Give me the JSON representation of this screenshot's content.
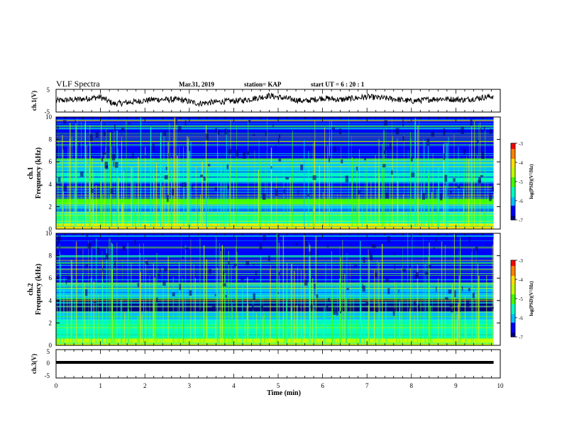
{
  "header": {
    "title": "VLF Spectra",
    "date": "Mar.31, 2019",
    "station": "station= KAP",
    "start": "start  UT  =   6  : 20 : 1"
  },
  "chart_data": [
    {
      "type": "line",
      "name": "ch.1 waveform",
      "ylabel": "ch.1(V)",
      "ylim": [
        -5,
        5
      ],
      "yticks": [
        "5",
        "-5"
      ],
      "xlim": [
        0,
        10
      ],
      "description_values": {
        "mean": 0.5,
        "amplitude": 2.0,
        "trend": [
          [
            0,
            0
          ],
          [
            0.5,
            0.6
          ],
          [
            1.0,
            1.6
          ],
          [
            1.3,
            -1.4
          ],
          [
            1.8,
            -0.4
          ],
          [
            2.2,
            0.6
          ],
          [
            2.8,
            0.4
          ],
          [
            3.2,
            -1.2
          ],
          [
            3.8,
            -0.3
          ],
          [
            4.2,
            0.1
          ],
          [
            4.8,
            2.2
          ],
          [
            5.2,
            0.9
          ],
          [
            5.6,
            -0.2
          ],
          [
            6.0,
            1.2
          ],
          [
            6.4,
            0.4
          ],
          [
            7.0,
            1.7
          ],
          [
            7.6,
            0.8
          ],
          [
            8.0,
            -0.2
          ],
          [
            8.6,
            0.9
          ],
          [
            9.2,
            0.4
          ],
          [
            9.8,
            1.9
          ]
        ]
      }
    },
    {
      "type": "heatmap",
      "name": "ch.1 spectrogram",
      "ylabel_top": "ch.1",
      "ylabel": "Frequency (kHz)",
      "ylim": [
        0,
        10
      ],
      "yticks": [
        "0",
        "2",
        "4",
        "6",
        "8",
        "10"
      ],
      "xlim": [
        0,
        9.85
      ],
      "colorbar": {
        "label": "log(PSD)(V²/Hz)",
        "range": [
          -7,
          -3
        ],
        "ticks": [
          "-3",
          "-4",
          "-5",
          "-6",
          "-7"
        ]
      },
      "bands": [
        {
          "f": [
            0.0,
            0.5
          ],
          "level": -4.2
        },
        {
          "f": [
            0.5,
            1.4
          ],
          "level": -5.4
        },
        {
          "f": [
            1.4,
            2.2
          ],
          "level": -6.0
        },
        {
          "f": [
            2.2,
            2.7
          ],
          "level": -5.0
        },
        {
          "f": [
            2.7,
            3.6
          ],
          "level": -6.3
        },
        {
          "f": [
            3.6,
            4.2
          ],
          "level": -6.7
        },
        {
          "f": [
            4.2,
            5.2
          ],
          "level": -5.6
        },
        {
          "f": [
            5.2,
            6.2
          ],
          "level": -6.0
        },
        {
          "f": [
            6.2,
            7.4
          ],
          "level": -6.3
        },
        {
          "f": [
            7.4,
            10.0
          ],
          "level": -6.5
        }
      ]
    },
    {
      "type": "heatmap",
      "name": "ch.2 spectrogram",
      "ylabel_top": "ch.2",
      "ylabel": "Frequency (kHz)",
      "ylim": [
        0,
        10
      ],
      "yticks": [
        "0",
        "2",
        "4",
        "6",
        "8",
        "10"
      ],
      "xlim": [
        0,
        9.85
      ],
      "colorbar": {
        "label": "log(PSD)(V²/Hz)",
        "range": [
          -7,
          -3
        ],
        "ticks": [
          "-3",
          "-4",
          "-5",
          "-6",
          "-7"
        ]
      },
      "bands": [
        {
          "f": [
            0.0,
            0.6
          ],
          "level": -4.6
        },
        {
          "f": [
            0.6,
            1.4
          ],
          "level": -5.5
        },
        {
          "f": [
            1.4,
            2.3
          ],
          "level": -5.3
        },
        {
          "f": [
            2.3,
            3.0
          ],
          "level": -6.1
        },
        {
          "f": [
            3.0,
            4.2
          ],
          "level": -6.8
        },
        {
          "f": [
            4.2,
            5.6
          ],
          "level": -6.2
        },
        {
          "f": [
            5.6,
            7.2
          ],
          "level": -6.4
        },
        {
          "f": [
            7.2,
            10.0
          ],
          "level": -6.6
        }
      ]
    },
    {
      "type": "line",
      "name": "ch.3 waveform",
      "ylabel": "ch.3(V)",
      "ylim": [
        -5,
        5
      ],
      "yticks": [
        "5",
        "0",
        "-5"
      ],
      "xlim": [
        0,
        10
      ],
      "x": [
        0,
        9.85
      ],
      "y": [
        0,
        0
      ]
    }
  ],
  "xaxis": {
    "label": "Time (min)",
    "ticks": [
      "0",
      "1",
      "2",
      "3",
      "4",
      "5",
      "6",
      "7",
      "8",
      "9",
      "10"
    ]
  },
  "colors": {
    "line": "#000000",
    "colormap": [
      "#000080",
      "#0000ff",
      "#00c0ff",
      "#00ffc0",
      "#40ff00",
      "#c0ff00",
      "#ffe000",
      "#ff8000",
      "#ff0000",
      "#ffffff"
    ]
  }
}
